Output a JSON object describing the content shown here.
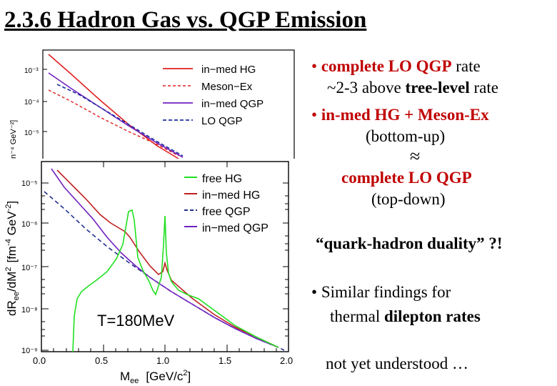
{
  "slide": {
    "title": "2.3.6  Hadron Gas vs. QGP Emission"
  },
  "bullets": {
    "b1_bullet": "•",
    "b1_p1": "complete LO QGP",
    "b1_p2": " rate",
    "b1_line2_p1": "~2-3 above ",
    "b1_line2_p2": "tree-level",
    "b1_line2_p3": " rate",
    "b2_bullet": "•",
    "b2_p1": "in-med HG + Meson-Ex",
    "b2_line2": "(bottom-up)",
    "approx": "≈",
    "b2_line3": "complete LO QGP",
    "b2_line4": "(top-down)",
    "quote": "“quark-hadron duality” ?!",
    "b3_bullet": "•",
    "b3_p1": "Similar findings for",
    "b3_line2_p1": "thermal ",
    "b3_line2_p2": "dilepton rates",
    "footer": "not yet understood  …"
  },
  "figure": {
    "top_panel": {
      "y_ticks": [
        "10⁻³",
        "10⁻⁴",
        "10⁻⁵"
      ],
      "y_label": "n⁻⁴ GeV⁻²]",
      "legend": [
        {
          "label": "in−med HG",
          "color": "#e02020",
          "dash": "solid"
        },
        {
          "label": "Meson−Ex",
          "color": "#e02020",
          "dash": "dashed"
        },
        {
          "label": "in−med QGP",
          "color": "#7020c0",
          "dash": "solid"
        },
        {
          "label": "LO QGP",
          "color": "#2030a0",
          "dash": "dashed"
        }
      ]
    },
    "main_panel": {
      "y_ticks": [
        "10⁻⁵",
        "10⁻⁶",
        "10⁻⁷",
        "10⁻⁸",
        "10⁻⁹"
      ],
      "x_ticks": [
        "0.0",
        "0.5",
        "1.0",
        "1.5",
        "2.0"
      ],
      "y_label": "dR",
      "y_label_sub": "ee",
      "y_label_rest": "/dM",
      "y_label_sup": "2",
      "y_label_units": "[fm",
      "y_label_units_sup": "-4",
      "y_label_units_rest": " GeV",
      "y_label_units_sup2": "-2",
      "y_label_close": "]",
      "x_label": "M",
      "x_label_sub": "ee",
      "x_label_units": "[GeV/c",
      "x_label_units_sup": "2",
      "x_label_close": "]",
      "annotation": "T=180MeV",
      "legend": [
        {
          "label": "free HG",
          "color": "#20e020",
          "dash": "solid"
        },
        {
          "label": "in−med HG",
          "color": "#c02020",
          "dash": "solid"
        },
        {
          "label": "free QGP",
          "color": "#203090",
          "dash": "dashed"
        },
        {
          "label": "in−med QGP",
          "color": "#7020c0",
          "dash": "solid"
        }
      ]
    }
  }
}
